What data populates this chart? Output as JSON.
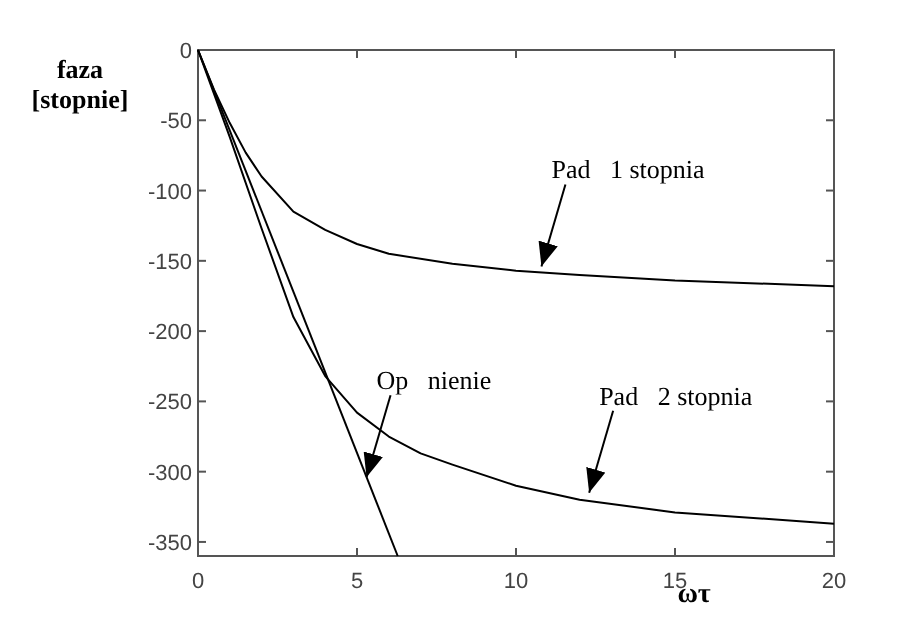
{
  "chart_data": {
    "type": "line",
    "xlabel": "ωτ",
    "ylabel": "faza [stopnie]",
    "xlim": [
      0,
      20
    ],
    "ylim": [
      -360,
      0
    ],
    "xticks": [
      0,
      5,
      10,
      15,
      20
    ],
    "yticks": [
      0,
      -50,
      -100,
      -150,
      -200,
      -250,
      -300,
      -350
    ],
    "grid": false,
    "marker": "none",
    "line_style": "solid",
    "series": [
      {
        "color": "#000000",
        "x": [
          0,
          0.5,
          1,
          1.5,
          2,
          3,
          4,
          5,
          6,
          8,
          10,
          12,
          15,
          20
        ],
        "values": [
          0,
          -28,
          -52,
          -73,
          -90,
          -115,
          -128,
          -138,
          -145,
          -152,
          -157,
          -160,
          -164,
          -168
        ]
      },
      {
        "color": "#000000",
        "x": [
          0,
          1,
          2,
          3,
          4,
          5,
          6,
          7,
          8,
          10,
          12,
          15,
          20
        ],
        "values": [
          0,
          -62,
          -127,
          -190,
          -232,
          -258,
          -275,
          -287,
          -295,
          -310,
          -320,
          -329,
          -337
        ]
      },
      {
        "color": "#000000",
        "x": [
          0,
          6.28
        ],
        "values": [
          0,
          -360
        ]
      }
    ],
    "annotations": [
      {
        "text": "Pad   1 stopnia",
        "x": 10.8,
        "y": -154
      },
      {
        "text": "Op   nienie",
        "x": 5.3,
        "y": -304
      },
      {
        "text": "Pad   2 stopnia",
        "x": 12.3,
        "y": -315
      }
    ]
  }
}
